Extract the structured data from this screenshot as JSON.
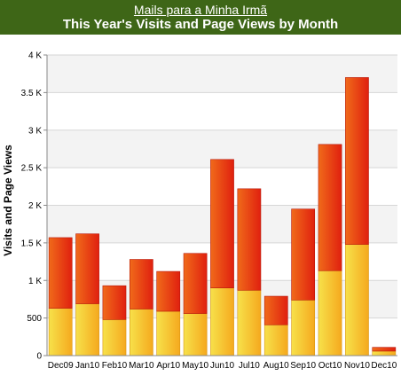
{
  "header": {
    "site_link": "Mails para a Minha Irmã",
    "title": "This Year's Visits and Page Views by Month",
    "background": "#3e6617"
  },
  "chart_data": {
    "type": "bar",
    "title": "This Year's Visits and Page Views by Month",
    "xlabel": "",
    "ylabel": "Visits and Page Views",
    "ylim": [
      0,
      4000
    ],
    "y_ticks": [
      0,
      500,
      1000,
      1500,
      2000,
      2500,
      3000,
      3500,
      4000
    ],
    "y_tick_labels": [
      "0",
      "500",
      "1 K",
      "1.5 K",
      "2 K",
      "2.5 K",
      "3 K",
      "3.5 K",
      "4 K"
    ],
    "grid": true,
    "stacked": true,
    "categories": [
      "Dec09",
      "Jan10",
      "Feb10",
      "Mar10",
      "Apr10",
      "May10",
      "Jun10",
      "Jul10",
      "Aug10",
      "Sep10",
      "Oct10",
      "Nov10",
      "Dec10"
    ],
    "series": [
      {
        "values": [
          630,
          690,
          480,
          620,
          590,
          560,
          900,
          870,
          410,
          740,
          1130,
          1480,
          60
        ],
        "colors": [
          "#f7e14a",
          "#f5a91e"
        ]
      },
      {
        "values": [
          940,
          930,
          450,
          660,
          530,
          800,
          1710,
          1350,
          380,
          1210,
          1680,
          2220,
          50
        ],
        "colors": [
          "#f06a1a",
          "#e0200f"
        ]
      }
    ]
  }
}
